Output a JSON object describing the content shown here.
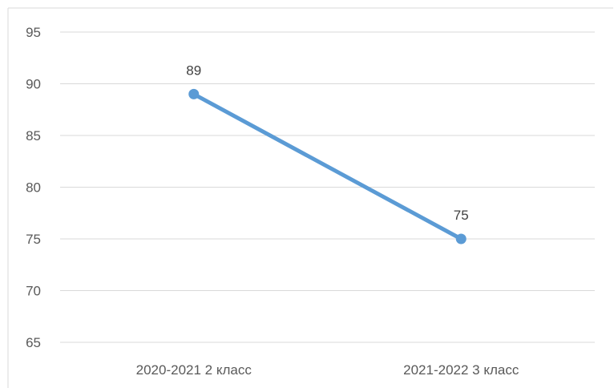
{
  "chart_data": {
    "type": "line",
    "title": "",
    "xlabel": "",
    "ylabel": "",
    "categories": [
      "2020-2021 2 класс",
      "2021-2022 3 класс"
    ],
    "series": [
      {
        "values": [
          89,
          75
        ],
        "color": "#5b9bd5",
        "markers": true,
        "data_labels": [
          "89",
          "75"
        ]
      }
    ],
    "ylim": [
      65,
      95
    ],
    "yticks": [
      65,
      70,
      75,
      80,
      85,
      90,
      95
    ],
    "ytick_labels": [
      "65",
      "70",
      "75",
      "80",
      "85",
      "90",
      "95"
    ],
    "grid": "horizontal",
    "gridline_color": "#d9d9d9",
    "legend": "none"
  }
}
